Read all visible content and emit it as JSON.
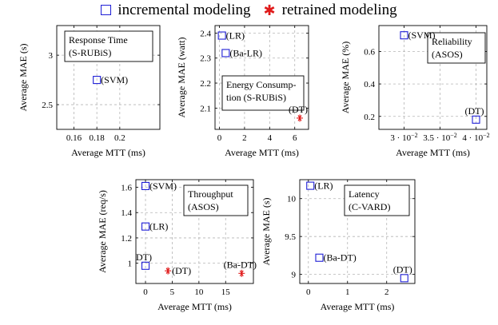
{
  "legend": {
    "incremental_label": "incremental modeling",
    "retrained_label": "retrained modeling",
    "incremental_color": "#1f1fd6",
    "retrained_color": "#e01b1b",
    "incremental_marker": "square-outline",
    "retrained_marker": "star"
  },
  "chart_data": [
    {
      "type": "scatter",
      "title_lines": [
        "Response Time",
        "(S-RUBiS)"
      ],
      "xlabel": "Average MTT (ms)",
      "ylabel": "Average MAE (s)",
      "xlim": [
        0.145,
        0.235
      ],
      "ylim": [
        2.25,
        3.3
      ],
      "xticks": [
        {
          "v": 0.16,
          "t": "0.16"
        },
        {
          "v": 0.18,
          "t": "0.18"
        },
        {
          "v": 0.2,
          "t": "0.2"
        }
      ],
      "yticks": [
        {
          "v": 2.5,
          "t": "2.5"
        },
        {
          "v": 3,
          "t": "3"
        }
      ],
      "grid": true,
      "points": [
        {
          "x": 0.18,
          "y": 2.75,
          "series": "incremental",
          "label": "(SVM)",
          "anchor": "right"
        }
      ]
    },
    {
      "type": "scatter",
      "title_lines": [
        "Energy Consump-",
        "tion (S-RUBiS)"
      ],
      "xlabel": "Average MTT (ms)",
      "ylabel": "Average MAE (watt)",
      "xlim": [
        -0.35,
        7.1
      ],
      "ylim": [
        2.015,
        2.43
      ],
      "xticks": [
        {
          "v": 0,
          "t": "0"
        },
        {
          "v": 2,
          "t": "2"
        },
        {
          "v": 4,
          "t": "4"
        },
        {
          "v": 6,
          "t": "6"
        }
      ],
      "yticks": [
        {
          "v": 2.1,
          "t": "2.1"
        },
        {
          "v": 2.2,
          "t": "2.2"
        },
        {
          "v": 2.3,
          "t": "2.3"
        },
        {
          "v": 2.4,
          "t": "2.4"
        }
      ],
      "grid": true,
      "points": [
        {
          "x": 0.2,
          "y": 2.39,
          "series": "incremental",
          "label": "(LR)",
          "anchor": "right"
        },
        {
          "x": 0.5,
          "y": 2.32,
          "series": "incremental",
          "label": "(Ba-LR)",
          "anchor": "right"
        },
        {
          "x": 6.4,
          "y": 2.06,
          "series": "retrained",
          "label": "(DT)",
          "anchor": "above"
        }
      ]
    },
    {
      "type": "scatter",
      "title_lines": [
        "Reliability",
        "(ASOS)"
      ],
      "xlabel": "Average MTT (ms)",
      "ylabel": "Average MAE (%)",
      "xlim": [
        0.0265,
        0.0415
      ],
      "ylim": [
        0.12,
        0.76
      ],
      "xticks": [
        {
          "v": 0.03,
          "base": "3 · 10",
          "exp": "−2"
        },
        {
          "v": 0.035,
          "base": "3.5 · 10",
          "exp": "−2"
        },
        {
          "v": 0.04,
          "base": "4 · 10",
          "exp": "−2"
        }
      ],
      "yticks": [
        {
          "v": 0.2,
          "t": "0.2"
        },
        {
          "v": 0.4,
          "t": "0.4"
        },
        {
          "v": 0.6,
          "t": "0.6"
        }
      ],
      "grid": true,
      "points": [
        {
          "x": 0.03,
          "y": 0.7,
          "series": "incremental",
          "label": "(SVM)",
          "anchor": "right"
        },
        {
          "x": 0.04,
          "y": 0.18,
          "series": "incremental",
          "label": "(DT)",
          "anchor": "above"
        }
      ]
    },
    {
      "type": "scatter",
      "title_lines": [
        "Throughput",
        "(ASOS)"
      ],
      "xlabel": "Average MTT (ms)",
      "ylabel": "Average MAE (req/s)",
      "xlim": [
        -1.8,
        20.2
      ],
      "ylim": [
        0.84,
        1.66
      ],
      "xticks": [
        {
          "v": 0,
          "t": "0"
        },
        {
          "v": 5,
          "t": "5"
        },
        {
          "v": 10,
          "t": "10"
        },
        {
          "v": 15,
          "t": "15"
        }
      ],
      "yticks": [
        {
          "v": 1,
          "t": "1"
        },
        {
          "v": 1.2,
          "t": "1.2"
        },
        {
          "v": 1.4,
          "t": "1.4"
        },
        {
          "v": 1.6,
          "t": "1.6"
        }
      ],
      "grid": true,
      "points": [
        {
          "x": 0,
          "y": 1.61,
          "series": "incremental",
          "label": "(SVM)",
          "anchor": "right"
        },
        {
          "x": 0,
          "y": 1.29,
          "series": "incremental",
          "label": "(LR)",
          "anchor": "right"
        },
        {
          "x": 0,
          "y": 0.98,
          "series": "incremental",
          "label": "DT)",
          "anchor": "above"
        },
        {
          "x": 4.2,
          "y": 0.94,
          "series": "retrained",
          "label": "(DT)",
          "anchor": "right"
        },
        {
          "x": 18,
          "y": 0.92,
          "series": "retrained",
          "label": "(Ba-DT)",
          "anchor": "above"
        }
      ]
    },
    {
      "type": "scatter",
      "title_lines": [
        "Latency",
        "(C-VARD)"
      ],
      "xlabel": "Average MTT (ms)",
      "ylabel": "Average MAE (s)",
      "xlim": [
        -0.22,
        2.72
      ],
      "ylim": [
        8.88,
        10.25
      ],
      "xticks": [
        {
          "v": 0,
          "t": "0"
        },
        {
          "v": 1,
          "t": "1"
        },
        {
          "v": 2,
          "t": "2"
        }
      ],
      "yticks": [
        {
          "v": 9,
          "t": "9"
        },
        {
          "v": 9.5,
          "t": "9.5"
        },
        {
          "v": 10,
          "t": "10"
        }
      ],
      "grid": true,
      "points": [
        {
          "x": 0.05,
          "y": 10.17,
          "series": "incremental",
          "label": "(LR)",
          "anchor": "right"
        },
        {
          "x": 0.28,
          "y": 9.22,
          "series": "incremental",
          "label": "(Ba-DT)",
          "anchor": "right"
        },
        {
          "x": 2.45,
          "y": 8.95,
          "series": "incremental",
          "label": "(DT)",
          "anchor": "above"
        }
      ]
    }
  ]
}
